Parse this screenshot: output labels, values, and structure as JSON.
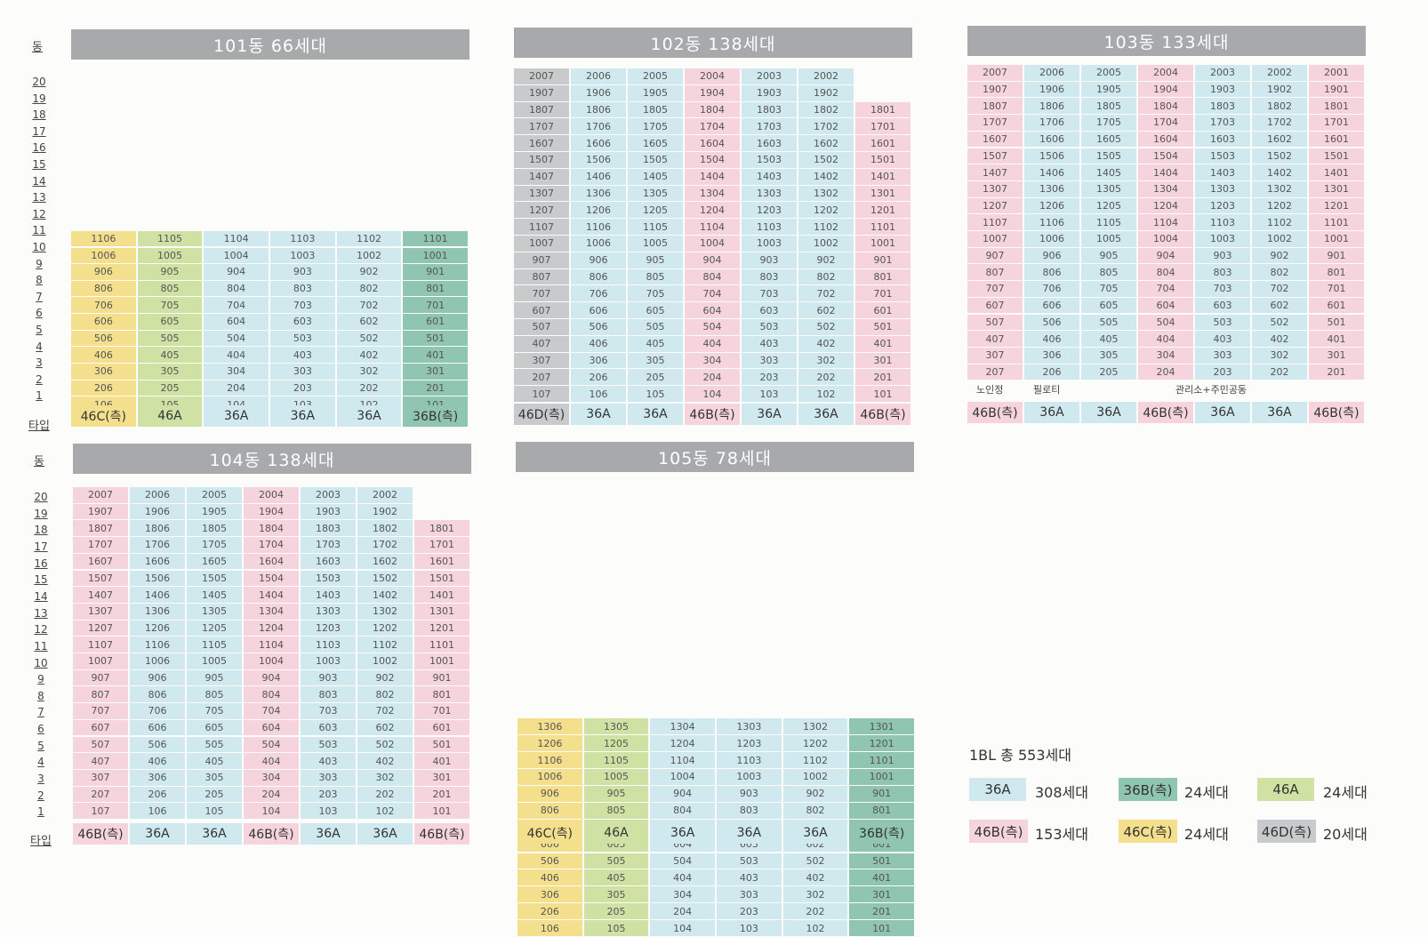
{
  "colors": {
    "36A": "#cfe9ee",
    "46A": "#cfe2a4",
    "36B": "#8fc5b1",
    "46B": "#f5d4de",
    "46C": "#f4e08c",
    "46D": "#c9cacb"
  },
  "labels": {
    "dong": "동",
    "type": "타입"
  },
  "floor_numbers": [
    "20",
    "19",
    "18",
    "17",
    "16",
    "15",
    "14",
    "13",
    "12",
    "11",
    "10",
    "9",
    "8",
    "7",
    "6",
    "5",
    "4",
    "3",
    "2",
    "1"
  ],
  "buildings": [
    {
      "title": "101동 66세대",
      "floors": 11,
      "columns": [
        {
          "type": "46C(측)",
          "key": "46C",
          "suffix": "06",
          "min": 1,
          "max": 11
        },
        {
          "type": "46A",
          "key": "46A",
          "suffix": "05",
          "min": 1,
          "max": 11
        },
        {
          "type": "36A",
          "key": "36A",
          "suffix": "04",
          "min": 1,
          "max": 11
        },
        {
          "type": "36A",
          "key": "36A",
          "suffix": "03",
          "min": 1,
          "max": 11
        },
        {
          "type": "36A",
          "key": "36A",
          "suffix": "02",
          "min": 1,
          "max": 11
        },
        {
          "type": "36B(측)",
          "key": "36B",
          "suffix": "01",
          "min": 1,
          "max": 11
        }
      ]
    },
    {
      "title": "102동 138세대",
      "floors": 20,
      "columns": [
        {
          "type": "46D(측)",
          "key": "46D",
          "suffix": "07",
          "min": 1,
          "max": 20
        },
        {
          "type": "36A",
          "key": "36A",
          "suffix": "06",
          "min": 1,
          "max": 20
        },
        {
          "type": "36A",
          "key": "36A",
          "suffix": "05",
          "min": 1,
          "max": 20
        },
        {
          "type": "46B(측)",
          "key": "46B",
          "suffix": "04",
          "min": 1,
          "max": 20
        },
        {
          "type": "36A",
          "key": "36A",
          "suffix": "03",
          "min": 1,
          "max": 20
        },
        {
          "type": "36A",
          "key": "36A",
          "suffix": "02",
          "min": 1,
          "max": 20
        },
        {
          "type": "46B(측)",
          "key": "46B",
          "suffix": "01",
          "min": 1,
          "max": 18
        }
      ]
    },
    {
      "title": "103동 133세대",
      "floors": 20,
      "columns": [
        {
          "type": "46B(측)",
          "key": "46B",
          "suffix": "07",
          "min": 2,
          "max": 20
        },
        {
          "type": "36A",
          "key": "36A",
          "suffix": "06",
          "min": 2,
          "max": 20
        },
        {
          "type": "36A",
          "key": "36A",
          "suffix": "05",
          "min": 2,
          "max": 20
        },
        {
          "type": "46B(측)",
          "key": "46B",
          "suffix": "04",
          "min": 2,
          "max": 20
        },
        {
          "type": "36A",
          "key": "36A",
          "suffix": "03",
          "min": 2,
          "max": 20
        },
        {
          "type": "36A",
          "key": "36A",
          "suffix": "02",
          "min": 2,
          "max": 20
        },
        {
          "type": "46B(측)",
          "key": "46B",
          "suffix": "01",
          "min": 2,
          "max": 20
        }
      ],
      "ground_labels": [
        {
          "text": "노인정",
          "col": 0
        },
        {
          "text": "필로티",
          "col": 1
        },
        {
          "text": "관리소+주민공동",
          "col": 3.5
        }
      ]
    },
    {
      "title": "104동 138세대",
      "floors": 20,
      "columns": [
        {
          "type": "46B(측)",
          "key": "46B",
          "suffix": "07",
          "min": 1,
          "max": 20
        },
        {
          "type": "36A",
          "key": "36A",
          "suffix": "06",
          "min": 1,
          "max": 20
        },
        {
          "type": "36A",
          "key": "36A",
          "suffix": "05",
          "min": 1,
          "max": 20
        },
        {
          "type": "46B(측)",
          "key": "46B",
          "suffix": "04",
          "min": 1,
          "max": 20
        },
        {
          "type": "36A",
          "key": "36A",
          "suffix": "03",
          "min": 1,
          "max": 20
        },
        {
          "type": "36A",
          "key": "36A",
          "suffix": "02",
          "min": 1,
          "max": 20
        },
        {
          "type": "46B(측)",
          "key": "46B",
          "suffix": "01",
          "min": 1,
          "max": 18
        }
      ]
    },
    {
      "title": "105동 78세대",
      "floors": 13,
      "columns": [
        {
          "type": "46C(측)",
          "key": "46C",
          "suffix": "06",
          "min": 1,
          "max": 13
        },
        {
          "type": "46A",
          "key": "46A",
          "suffix": "05",
          "min": 1,
          "max": 13
        },
        {
          "type": "36A",
          "key": "36A",
          "suffix": "04",
          "min": 1,
          "max": 13
        },
        {
          "type": "36A",
          "key": "36A",
          "suffix": "03",
          "min": 1,
          "max": 13
        },
        {
          "type": "36A",
          "key": "36A",
          "suffix": "02",
          "min": 1,
          "max": 13
        },
        {
          "type": "36B(측)",
          "key": "36B",
          "suffix": "01",
          "min": 1,
          "max": 13
        }
      ]
    }
  ],
  "summary": {
    "title": "1BL 총 553세대",
    "legend": [
      {
        "label": "36A",
        "key": "36A",
        "count": "308세대"
      },
      {
        "label": "36B(측)",
        "key": "36B",
        "count": "24세대"
      },
      {
        "label": "46A",
        "key": "46A",
        "count": "24세대"
      },
      {
        "label": "46B(측)",
        "key": "46B",
        "count": "153세대"
      },
      {
        "label": "46C(측)",
        "key": "46C",
        "count": "24세대"
      },
      {
        "label": "46D(측)",
        "key": "46D",
        "count": "20세대"
      }
    ]
  }
}
